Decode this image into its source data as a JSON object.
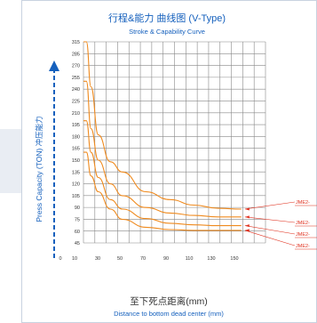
{
  "chart_data": {
    "type": "line",
    "title": "行程&能力 曲线图 (V-Type)",
    "subtitle": "Stroke & Capability Curve",
    "xlabel": "至下死点距离(mm)",
    "xlabel_en": "Distance to bottom dead center (mm)",
    "ylabel": "Press Capacity (TON) 冲压能力",
    "x_ticks": [
      "0",
      "10",
      "30",
      "50",
      "70",
      "90",
      "110",
      "130",
      "150"
    ],
    "y_ticks": [
      "315",
      "285",
      "270",
      "255",
      "240",
      "225",
      "210",
      "195",
      "180",
      "165",
      "150",
      "135",
      "120",
      "105",
      "90",
      "75",
      "60",
      "45"
    ],
    "grid": true,
    "series": [
      {
        "name": "JME2-",
        "x": [
          0,
          2,
          5,
          10,
          20,
          30,
          50,
          70,
          90,
          110,
          130
        ],
        "y": [
          315,
          315,
          243,
          182,
          148,
          135,
          110,
          100,
          93,
          89,
          88
        ]
      },
      {
        "name": "JME2-",
        "x": [
          0,
          2,
          5,
          10,
          20,
          30,
          50,
          70,
          90,
          110,
          130
        ],
        "y": [
          250,
          250,
          190,
          150,
          120,
          105,
          90,
          83,
          80,
          78,
          78
        ]
      },
      {
        "name": "JME2-",
        "x": [
          0,
          2,
          5,
          10,
          20,
          30,
          50,
          70,
          90,
          110,
          130
        ],
        "y": [
          200,
          200,
          160,
          128,
          100,
          88,
          76,
          70,
          68,
          67,
          67
        ]
      },
      {
        "name": "JME2-",
        "x": [
          0,
          2,
          5,
          10,
          20,
          30,
          50,
          70,
          90,
          110,
          130
        ],
        "y": [
          160,
          160,
          130,
          110,
          88,
          75,
          65,
          62,
          61,
          61,
          61
        ]
      }
    ],
    "colors": {
      "series": "#ef8a1e",
      "grid": "#888888",
      "accent": "#1560bd",
      "label": "#e0301e"
    }
  }
}
